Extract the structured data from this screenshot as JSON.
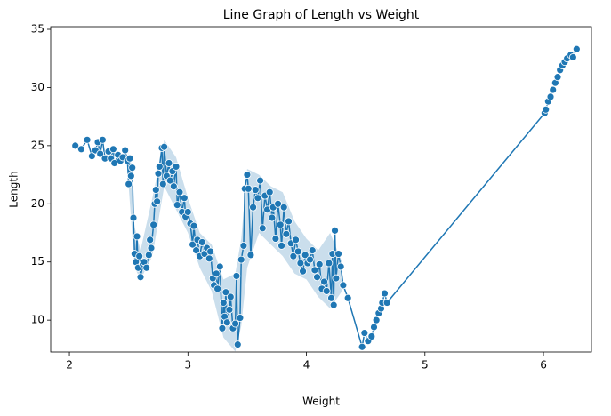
{
  "chart_data": {
    "type": "line",
    "title": "Line Graph of Length vs Weight",
    "x_label": "Weight",
    "y_label": "Length",
    "xlim": [
      1.842,
      6.405
    ],
    "ylim": [
      7.26,
      35.23
    ],
    "xticks": [
      2,
      3,
      4,
      5,
      6
    ],
    "yticks": [
      10,
      15,
      20,
      25,
      30,
      35
    ],
    "grid": false,
    "x": [
      2.05,
      2.1,
      2.15,
      2.19,
      2.22,
      2.24,
      2.26,
      2.28,
      2.3,
      2.33,
      2.35,
      2.37,
      2.38,
      2.41,
      2.43,
      2.45,
      2.47,
      2.49,
      2.5,
      2.51,
      2.52,
      2.53,
      2.54,
      2.55,
      2.56,
      2.57,
      2.58,
      2.59,
      2.6,
      2.62,
      2.63,
      2.65,
      2.67,
      2.68,
      2.69,
      2.71,
      2.72,
      2.73,
      2.74,
      2.75,
      2.76,
      2.78,
      2.79,
      2.8,
      2.82,
      2.84,
      2.85,
      2.87,
      2.88,
      2.9,
      2.91,
      2.93,
      2.95,
      2.97,
      2.98,
      3.0,
      3.02,
      3.04,
      3.05,
      3.07,
      3.08,
      3.1,
      3.12,
      3.14,
      3.16,
      3.18,
      3.19,
      3.21,
      3.22,
      3.24,
      3.25,
      3.27,
      3.29,
      3.3,
      3.31,
      3.32,
      3.33,
      3.35,
      3.36,
      3.38,
      3.4,
      3.41,
      3.42,
      3.44,
      3.45,
      3.47,
      3.48,
      3.5,
      3.51,
      3.53,
      3.55,
      3.57,
      3.59,
      3.61,
      3.63,
      3.65,
      3.67,
      3.69,
      3.71,
      3.72,
      3.74,
      3.76,
      3.78,
      3.79,
      3.81,
      3.83,
      3.85,
      3.87,
      3.89,
      3.91,
      3.93,
      3.95,
      3.97,
      3.99,
      4.01,
      4.03,
      4.05,
      4.07,
      4.09,
      4.11,
      4.13,
      4.15,
      4.17,
      4.19,
      4.21,
      4.22,
      4.23,
      4.24,
      4.25,
      4.27,
      4.29,
      4.31,
      4.35,
      4.47,
      4.49,
      4.52,
      4.55,
      4.57,
      4.59,
      4.61,
      4.63,
      4.64,
      4.66,
      4.68,
      6.01,
      6.02,
      6.04,
      6.06,
      6.08,
      6.1,
      6.12,
      6.14,
      6.16,
      6.18,
      6.2,
      6.23,
      6.25,
      6.28
    ],
    "series": [
      {
        "color": "#1f77b4",
        "values": [
          25.0,
          24.7,
          25.5,
          24.1,
          24.6,
          25.3,
          24.3,
          25.5,
          23.9,
          24.5,
          23.9,
          24.7,
          23.5,
          24.2,
          23.7,
          24.0,
          24.6,
          23.7,
          21.7,
          23.9,
          22.4,
          23.1,
          18.8,
          15.7,
          15.0,
          17.2,
          14.5,
          15.5,
          13.7,
          14.8,
          15.0,
          14.5,
          15.6,
          16.9,
          16.2,
          18.2,
          20.0,
          21.2,
          20.2,
          22.6,
          23.2,
          24.8,
          21.7,
          24.9,
          22.4,
          23.5,
          22.0,
          22.8,
          21.5,
          23.2,
          19.9,
          21.0,
          19.3,
          20.5,
          18.9,
          19.3,
          18.3,
          16.5,
          18.1,
          16.0,
          16.9,
          15.5,
          16.7,
          15.7,
          16.2,
          15.3,
          15.9,
          13.6,
          13.0,
          14.0,
          12.7,
          14.6,
          9.3,
          11.5,
          10.3,
          12.4,
          9.8,
          10.9,
          12.0,
          9.3,
          9.7,
          13.8,
          7.9,
          10.2,
          15.2,
          16.4,
          21.3,
          22.5,
          21.3,
          15.6,
          19.7,
          21.2,
          20.5,
          22.0,
          17.9,
          20.7,
          19.5,
          21.0,
          18.8,
          19.7,
          17.0,
          20.0,
          18.2,
          16.4,
          19.7,
          17.4,
          18.5,
          16.6,
          15.5,
          16.9,
          15.9,
          14.9,
          14.2,
          15.6,
          14.9,
          15.2,
          16.0,
          14.3,
          13.7,
          14.8,
          12.7,
          13.3,
          12.5,
          14.9,
          11.9,
          15.7,
          11.3,
          17.7,
          13.6,
          15.7,
          14.6,
          13.0,
          11.9,
          7.7,
          8.9,
          8.2,
          8.6,
          9.4,
          10.0,
          10.6,
          11.0,
          11.5,
          12.3,
          11.5,
          27.8,
          28.1,
          28.8,
          29.2,
          29.8,
          30.4,
          30.9,
          31.5,
          31.9,
          32.2,
          32.5,
          32.8,
          32.6,
          33.3
        ]
      }
    ],
    "band": {
      "color": "#a6c8e0",
      "x": [
        2.5,
        2.55,
        2.6,
        2.7,
        2.8,
        2.9,
        3.0,
        3.1,
        3.2,
        3.3,
        3.4,
        3.45,
        3.5,
        3.6,
        3.7,
        3.8,
        3.9,
        4.0,
        4.1,
        4.2,
        4.3
      ],
      "low": [
        21.5,
        14.5,
        13.5,
        15.5,
        21.5,
        19.5,
        17.5,
        14.5,
        12.5,
        8.5,
        7.3,
        9.5,
        14.5,
        17.5,
        16.5,
        15.5,
        14.0,
        13.5,
        12.0,
        11.0,
        12.5
      ],
      "high": [
        24.5,
        18.0,
        16.0,
        20.5,
        25.5,
        24.0,
        20.5,
        17.5,
        16.5,
        13.5,
        14.0,
        17.0,
        23.0,
        22.5,
        21.5,
        21.0,
        18.5,
        17.0,
        16.0,
        17.5,
        15.0
      ]
    }
  }
}
